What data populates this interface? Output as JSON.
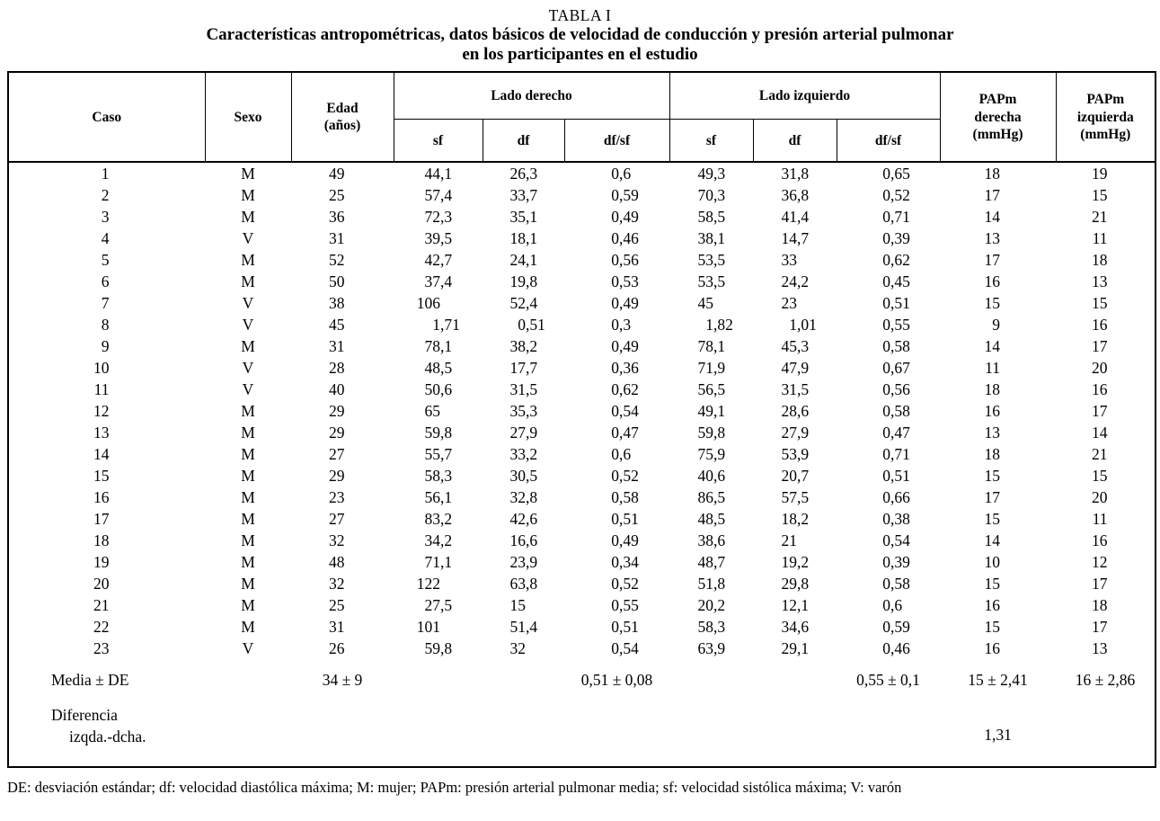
{
  "title": {
    "label": "TABLA I",
    "subtitle": "Características antropométricas, datos básicos de velocidad de conducción y presión arterial pulmonar\nen los participantes en el estudio"
  },
  "table": {
    "headers": {
      "caso": "Caso",
      "sexo": "Sexo",
      "edad": "Edad\n(años)",
      "lado_derecho": "Lado derecho",
      "lado_izquierdo": "Lado izquierdo",
      "sf_der": "sf",
      "df_der": "df",
      "dfsf_der": "df/sf",
      "sf_izq": "sf",
      "df_izq": "df",
      "dfsf_izq": "df/sf",
      "papm_derecha": "PAPm\nderecha\n(mmHg)",
      "papm_izquierda": "PAPm\nizquierda\n(mmHg)"
    },
    "rows": [
      [
        "1",
        "M",
        "49",
        "44,1",
        "26,3",
        "0,6",
        "49,3",
        "31,8",
        "0,65",
        "18",
        "19"
      ],
      [
        "2",
        "M",
        "25",
        "57,4",
        "33,7",
        "0,59",
        "70,3",
        "36,8",
        "0,52",
        "17",
        "15"
      ],
      [
        "3",
        "M",
        "36",
        "72,3",
        "35,1",
        "0,49",
        "58,5",
        "41,4",
        "0,71",
        "14",
        "21"
      ],
      [
        "4",
        "V",
        "31",
        "39,5",
        "18,1",
        "0,46",
        "38,1",
        "14,7",
        "0,39",
        "13",
        "11"
      ],
      [
        "5",
        "M",
        "52",
        "42,7",
        "24,1",
        "0,56",
        "53,5",
        "33",
        "0,62",
        "17",
        "18"
      ],
      [
        "6",
        "M",
        "50",
        "37,4",
        "19,8",
        "0,53",
        "53,5",
        "24,2",
        "0,45",
        "16",
        "13"
      ],
      [
        "7",
        "V",
        "38",
        "106",
        "52,4",
        "0,49",
        "45",
        "23",
        "0,51",
        "15",
        "15"
      ],
      [
        "8",
        "V",
        "45",
        "1,71",
        "0,51",
        "0,3",
        "1,82",
        "1,01",
        "0,55",
        "9",
        "16"
      ],
      [
        "9",
        "M",
        "31",
        "78,1",
        "38,2",
        "0,49",
        "78,1",
        "45,3",
        "0,58",
        "14",
        "17"
      ],
      [
        "10",
        "V",
        "28",
        "48,5",
        "17,7",
        "0,36",
        "71,9",
        "47,9",
        "0,67",
        "11",
        "20"
      ],
      [
        "11",
        "V",
        "40",
        "50,6",
        "31,5",
        "0,62",
        "56,5",
        "31,5",
        "0,56",
        "18",
        "16"
      ],
      [
        "12",
        "M",
        "29",
        "65",
        "35,3",
        "0,54",
        "49,1",
        "28,6",
        "0,58",
        "16",
        "17"
      ],
      [
        "13",
        "M",
        "29",
        "59,8",
        "27,9",
        "0,47",
        "59,8",
        "27,9",
        "0,47",
        "13",
        "14"
      ],
      [
        "14",
        "M",
        "27",
        "55,7",
        "33,2",
        "0,6",
        "75,9",
        "53,9",
        "0,71",
        "18",
        "21"
      ],
      [
        "15",
        "M",
        "29",
        "58,3",
        "30,5",
        "0,52",
        "40,6",
        "20,7",
        "0,51",
        "15",
        "15"
      ],
      [
        "16",
        "M",
        "23",
        "56,1",
        "32,8",
        "0,58",
        "86,5",
        "57,5",
        "0,66",
        "17",
        "20"
      ],
      [
        "17",
        "M",
        "27",
        "83,2",
        "42,6",
        "0,51",
        "48,5",
        "18,2",
        "0,38",
        "15",
        "11"
      ],
      [
        "18",
        "M",
        "32",
        "34,2",
        "16,6",
        "0,49",
        "38,6",
        "21",
        "0,54",
        "14",
        "16"
      ],
      [
        "19",
        "M",
        "48",
        "71,1",
        "23,9",
        "0,34",
        "48,7",
        "19,2",
        "0,39",
        "10",
        "12"
      ],
      [
        "20",
        "M",
        "32",
        "122",
        "63,8",
        "0,52",
        "51,8",
        "29,8",
        "0,58",
        "15",
        "17"
      ],
      [
        "21",
        "M",
        "25",
        "27,5",
        "15",
        "0,55",
        "20,2",
        "12,1",
        "0,6",
        "16",
        "18"
      ],
      [
        "22",
        "M",
        "31",
        "101",
        "51,4",
        "0,51",
        "58,3",
        "34,6",
        "0,59",
        "15",
        "17"
      ],
      [
        "23",
        "V",
        "26",
        "59,8",
        "32",
        "0,54",
        "63,9",
        "29,1",
        "0,46",
        "16",
        "13"
      ]
    ],
    "media_row": {
      "label": "Media  ± DE",
      "edad": "34 ± 9",
      "dfsf_der": "0,51 ± 0,08",
      "dfsf_izq": "0,55 ± 0,1",
      "papm_der": "15 ± 2,41",
      "papm_izq": "16 ± 2,86"
    },
    "diferencia_row": {
      "label_line1": "Diferencia",
      "label_line2": "izqda.-dcha.",
      "papm_der": "1,31"
    }
  },
  "footnote": "DE: desviación estándar; df: velocidad diastólica máxima; M: mujer; PAPm: presión arterial pulmonar media; sf: velocidad sistólica máxima; V: varón"
}
